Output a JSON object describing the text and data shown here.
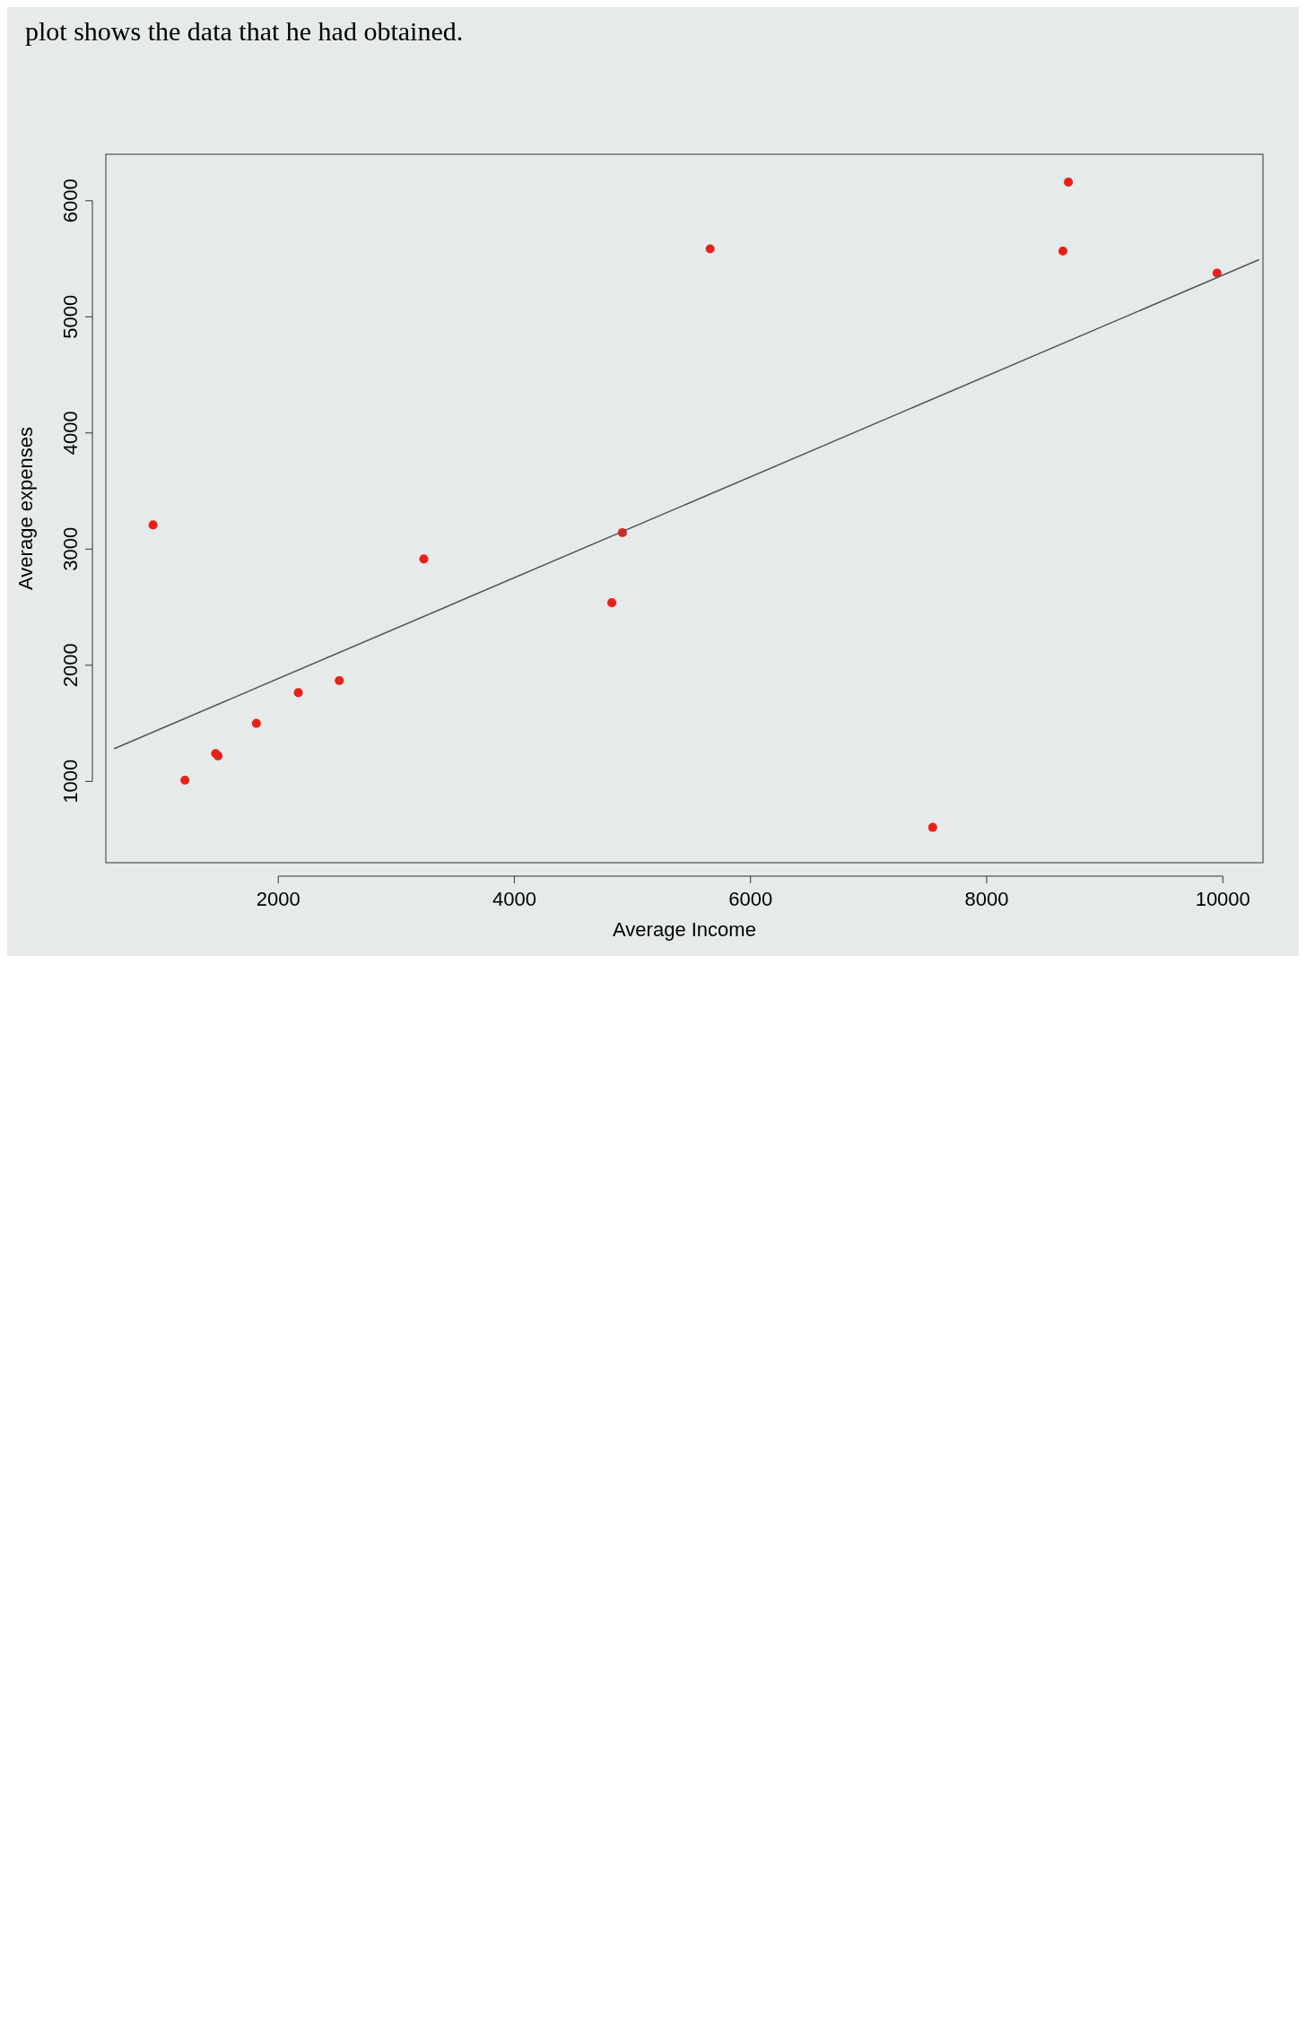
{
  "chart_data": {
    "type": "scatter",
    "xlabel": "Average Income",
    "ylabel": "Average expenses",
    "annotations": [
      "plot shows the data that he had obtained."
    ],
    "xlim": [
      540,
      10340
    ],
    "ylim": [
      300,
      6400
    ],
    "xticks": [
      2000,
      4000,
      6000,
      8000,
      10000
    ],
    "yticks": [
      1000,
      2000,
      3000,
      4000,
      5000,
      6000
    ],
    "grid": false,
    "series": [
      {
        "marker": "circle",
        "color": "#e8221a",
        "x": [
          940,
          1210,
          1470,
          1490,
          1815,
          2170,
          2517,
          3233,
          4825,
          4915,
          5658,
          7543,
          8646,
          8692,
          9951
        ],
        "values": [
          3208,
          1010,
          1240,
          1220,
          1500,
          1764,
          1868,
          2915,
          2538,
          3142,
          5585,
          604,
          5566,
          6160,
          5377
        ]
      },
      {
        "type": "line",
        "color": "#555555",
        "x": [
          613,
          10303
        ],
        "values": [
          1283,
          5491
        ],
        "line_style": "solid"
      }
    ]
  }
}
